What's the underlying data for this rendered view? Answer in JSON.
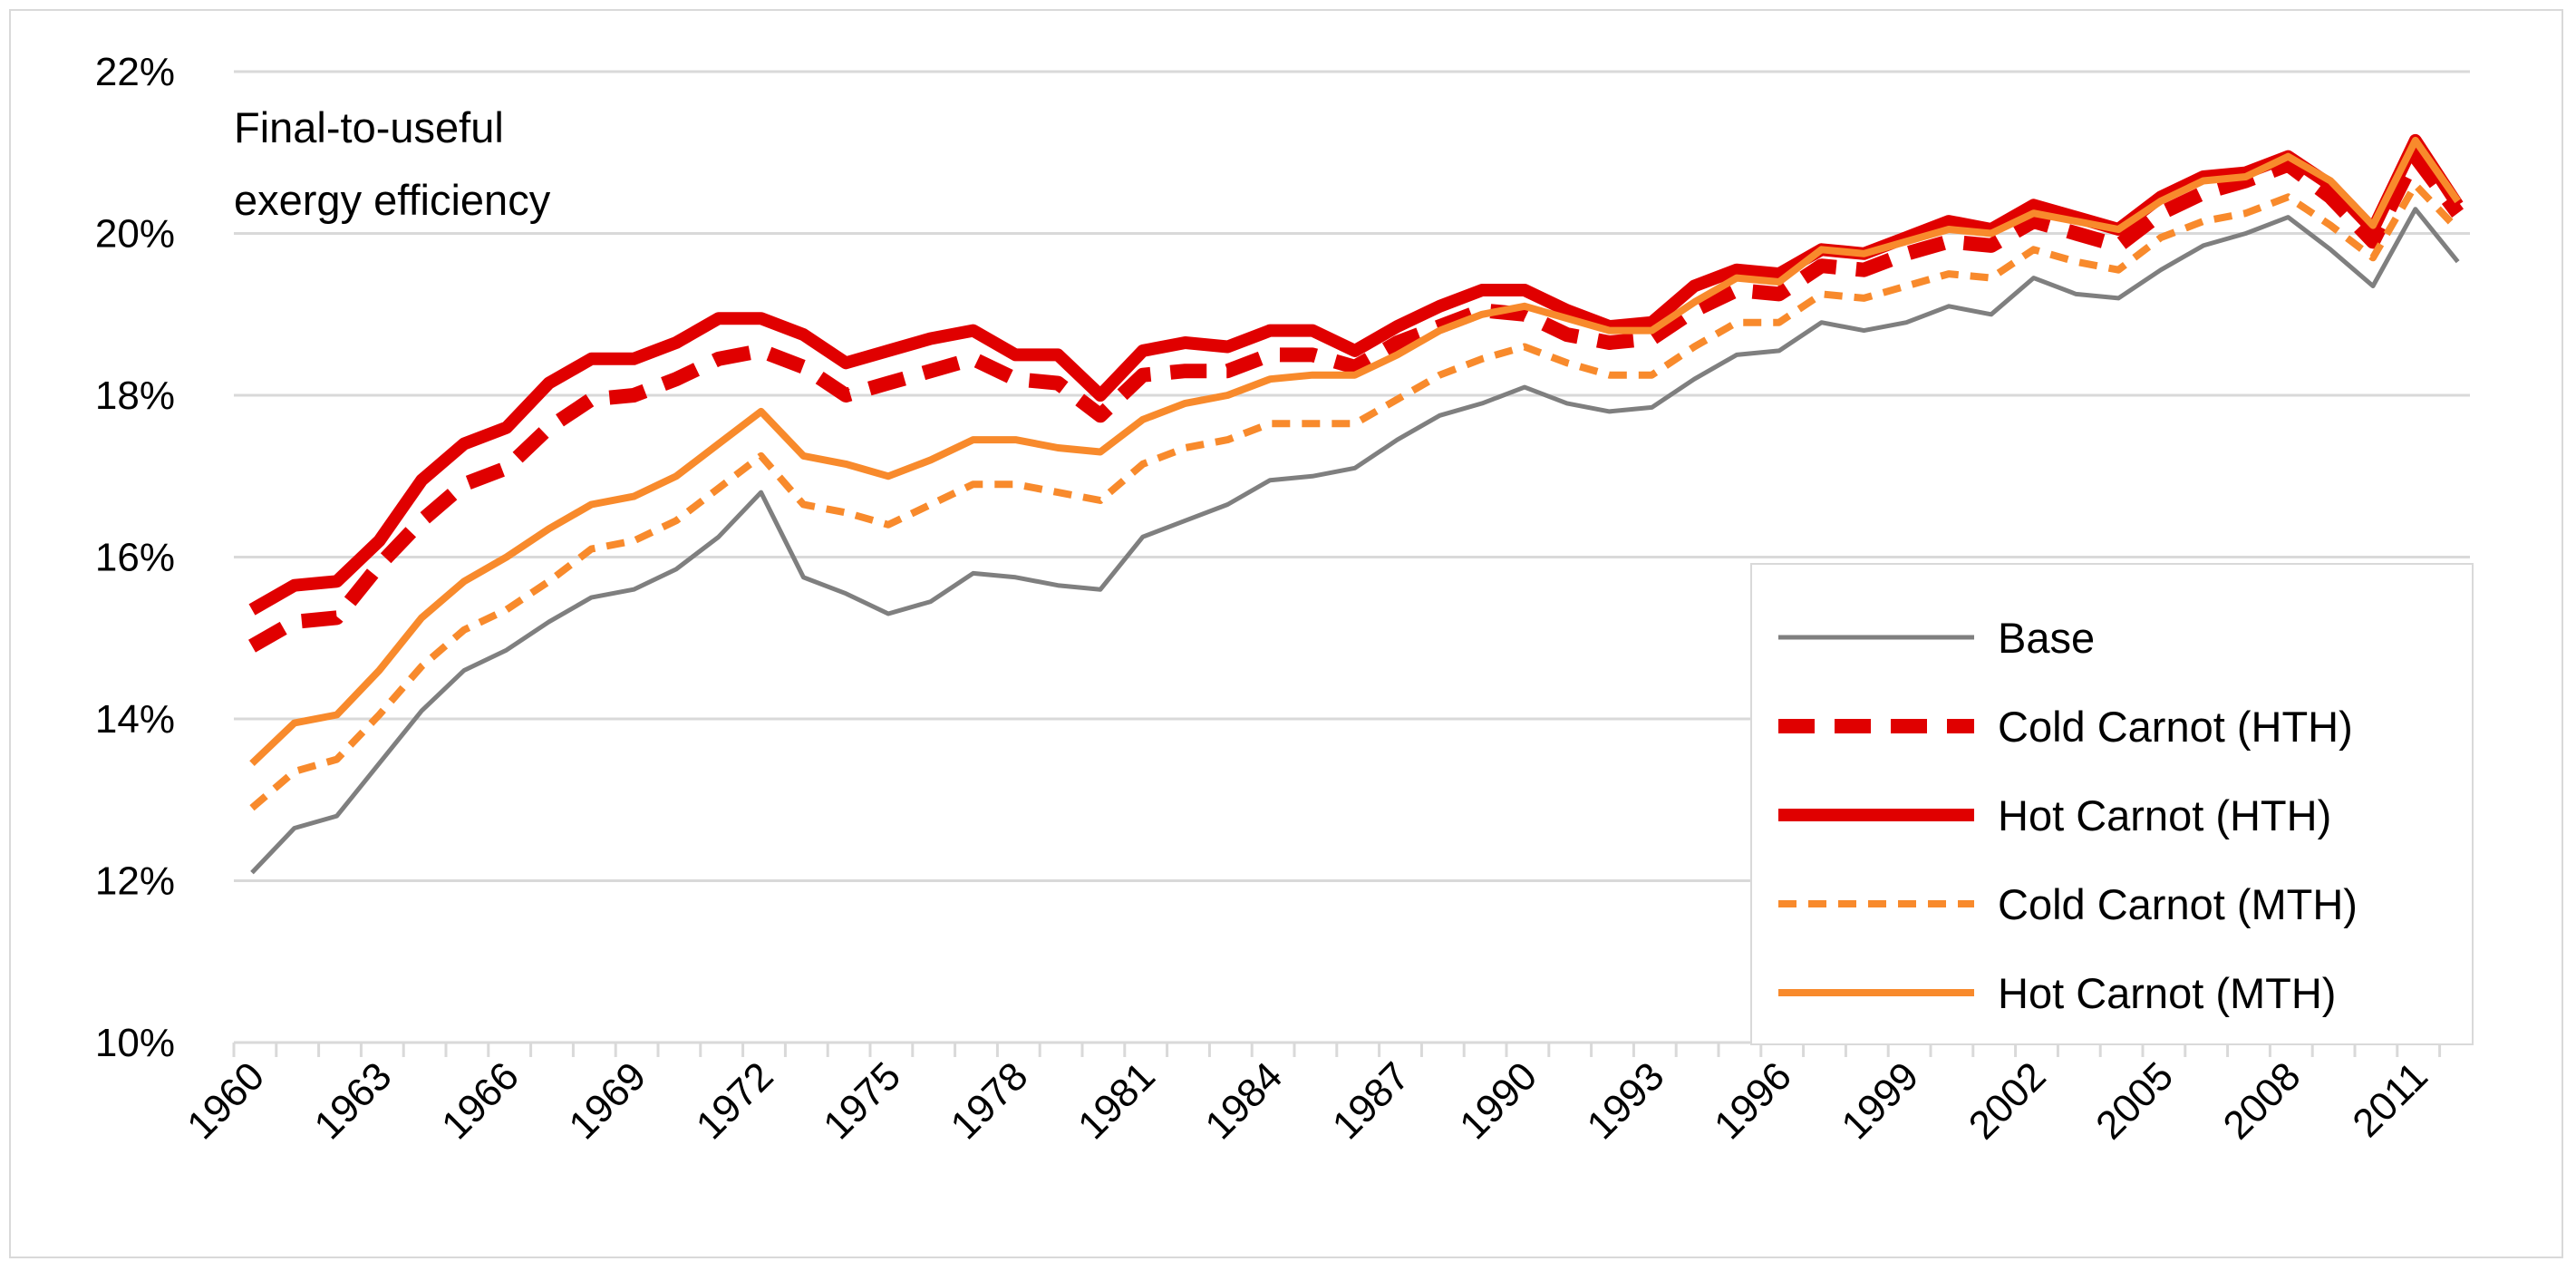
{
  "chart_data": {
    "type": "line",
    "annotation": [
      "Final-to-useful",
      "exergy efficiency"
    ],
    "ylim": [
      0.1,
      0.22
    ],
    "yticks": [
      0.1,
      0.12,
      0.14,
      0.16,
      0.18,
      0.2,
      0.22
    ],
    "ytick_labels": [
      "10%",
      "12%",
      "14%",
      "16%",
      "18%",
      "20%",
      "22%"
    ],
    "x": [
      1960,
      1961,
      1962,
      1963,
      1964,
      1965,
      1966,
      1967,
      1968,
      1969,
      1970,
      1971,
      1972,
      1973,
      1974,
      1975,
      1976,
      1977,
      1978,
      1979,
      1980,
      1981,
      1982,
      1983,
      1984,
      1985,
      1986,
      1987,
      1988,
      1989,
      1990,
      1991,
      1992,
      1993,
      1994,
      1995,
      1996,
      1997,
      1998,
      1999,
      2000,
      2001,
      2002,
      2003,
      2004,
      2005,
      2006,
      2007,
      2008,
      2009,
      2010,
      2011,
      2012
    ],
    "xtick_labels": [
      "1960",
      "1963",
      "1966",
      "1969",
      "1972",
      "1975",
      "1978",
      "1981",
      "1984",
      "1987",
      "1990",
      "1993",
      "1996",
      "1999",
      "2002",
      "2005",
      "2008",
      "2011"
    ],
    "legend_position": "bottom-right",
    "grid": true,
    "series": [
      {
        "name": "Base",
        "color": "#7f7f7f",
        "style": "solid-thin",
        "values": [
          0.121,
          0.1265,
          0.128,
          0.1345,
          0.141,
          0.146,
          0.1485,
          0.152,
          0.155,
          0.156,
          0.1585,
          0.1625,
          0.168,
          0.1575,
          0.1555,
          0.153,
          0.1545,
          0.158,
          0.1575,
          0.1565,
          0.156,
          0.1625,
          0.1645,
          0.1665,
          0.1695,
          0.17,
          0.171,
          0.1745,
          0.1775,
          0.179,
          0.181,
          0.179,
          0.178,
          0.1785,
          0.182,
          0.185,
          0.1855,
          0.189,
          0.188,
          0.189,
          0.191,
          0.19,
          0.1945,
          0.1925,
          0.192,
          0.1955,
          0.1985,
          0.2,
          0.202,
          0.198,
          0.1935,
          0.203,
          0.1965
        ]
      },
      {
        "name": "Cold Carnot (HTH)",
        "color": "#e00000",
        "style": "dashed-thick",
        "values": [
          0.149,
          0.152,
          0.1525,
          0.159,
          0.1645,
          0.169,
          0.171,
          0.176,
          0.1795,
          0.18,
          0.182,
          0.1845,
          0.1855,
          0.1835,
          0.18,
          0.1815,
          0.183,
          0.1845,
          0.182,
          0.1815,
          0.1775,
          0.1825,
          0.183,
          0.183,
          0.185,
          0.185,
          0.1835,
          0.1865,
          0.1885,
          0.1905,
          0.19,
          0.1875,
          0.1865,
          0.187,
          0.1905,
          0.193,
          0.1925,
          0.196,
          0.1955,
          0.1975,
          0.199,
          0.1985,
          0.2015,
          0.2,
          0.1985,
          0.2025,
          0.205,
          0.2065,
          0.2085,
          0.2045,
          0.199,
          0.2095,
          0.2025
        ]
      },
      {
        "name": "Hot Carnot (HTH)",
        "color": "#e00000",
        "style": "solid-thick",
        "values": [
          0.1535,
          0.1565,
          0.157,
          0.162,
          0.1695,
          0.174,
          0.176,
          0.1815,
          0.1845,
          0.1845,
          0.1865,
          0.1895,
          0.1895,
          0.1875,
          0.184,
          0.1855,
          0.187,
          0.188,
          0.185,
          0.185,
          0.18,
          0.1855,
          0.1865,
          0.186,
          0.188,
          0.188,
          0.1855,
          0.1885,
          0.191,
          0.193,
          0.193,
          0.1905,
          0.1885,
          0.189,
          0.1935,
          0.1955,
          0.195,
          0.198,
          0.1975,
          0.1995,
          0.2015,
          0.2005,
          0.2035,
          0.202,
          0.2005,
          0.2045,
          0.207,
          0.2075,
          0.2095,
          0.206,
          0.2005,
          0.2115,
          0.2035
        ]
      },
      {
        "name": "Cold Carnot (MTH)",
        "color": "#f88a2c",
        "style": "dashed-thin",
        "values": [
          0.129,
          0.1335,
          0.135,
          0.1405,
          0.1465,
          0.151,
          0.1535,
          0.157,
          0.161,
          0.162,
          0.1645,
          0.1685,
          0.1725,
          0.1665,
          0.1655,
          0.164,
          0.1665,
          0.169,
          0.169,
          0.168,
          0.167,
          0.1715,
          0.1735,
          0.1745,
          0.1765,
          0.1765,
          0.1765,
          0.1795,
          0.1825,
          0.1845,
          0.186,
          0.184,
          0.1825,
          0.1825,
          0.186,
          0.189,
          0.189,
          0.1925,
          0.192,
          0.1935,
          0.195,
          0.1945,
          0.198,
          0.1965,
          0.1955,
          0.1995,
          0.2015,
          0.2025,
          0.2045,
          0.201,
          0.197,
          0.206,
          0.2005
        ]
      },
      {
        "name": "Hot Carnot (MTH)",
        "color": "#f88a2c",
        "style": "solid-medium",
        "values": [
          0.1345,
          0.1395,
          0.1405,
          0.146,
          0.1525,
          0.157,
          0.16,
          0.1635,
          0.1665,
          0.1675,
          0.17,
          0.174,
          0.178,
          0.1725,
          0.1715,
          0.17,
          0.172,
          0.1745,
          0.1745,
          0.1735,
          0.173,
          0.177,
          0.179,
          0.18,
          0.182,
          0.1825,
          0.1825,
          0.185,
          0.188,
          0.19,
          0.191,
          0.1895,
          0.188,
          0.188,
          0.1915,
          0.1945,
          0.194,
          0.198,
          0.1975,
          0.199,
          0.2005,
          0.2,
          0.2025,
          0.2015,
          0.2005,
          0.204,
          0.2065,
          0.207,
          0.2095,
          0.2065,
          0.201,
          0.2115,
          0.204
        ]
      }
    ]
  }
}
